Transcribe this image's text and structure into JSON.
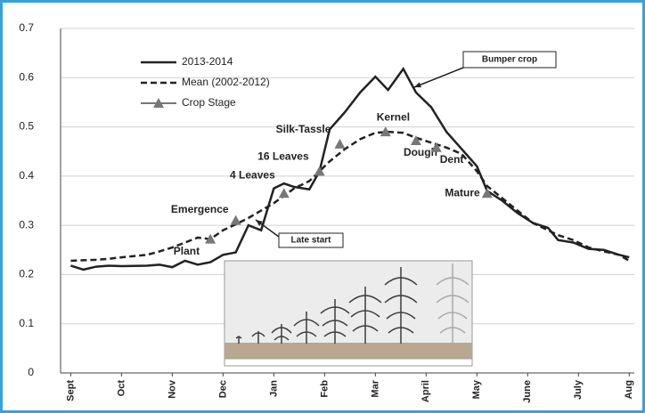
{
  "chart_data": {
    "type": "line",
    "x": [
      0,
      0.25,
      0.5,
      0.75,
      1,
      1.5,
      1.75,
      2,
      2.25,
      2.5,
      2.75,
      3,
      3.25,
      3.5,
      3.75,
      4,
      4.2,
      4.4,
      4.7,
      4.9,
      5.1,
      5.4,
      5.7,
      6,
      6.25,
      6.55,
      6.8,
      7.1,
      7.4,
      7.7,
      8,
      8.2,
      8.5,
      8.8,
      9.1,
      9.4,
      9.6,
      9.9,
      10.2,
      10.5,
      10.8,
      11
    ],
    "series": [
      {
        "name": "2013-2014",
        "color": "#222222",
        "dash": false,
        "values": [
          0.218,
          0.21,
          0.216,
          0.218,
          0.217,
          0.218,
          0.22,
          0.215,
          0.228,
          0.22,
          0.225,
          0.24,
          0.245,
          0.3,
          0.29,
          0.375,
          0.385,
          0.378,
          0.373,
          0.41,
          0.495,
          0.53,
          0.57,
          0.602,
          0.575,
          0.618,
          0.57,
          0.54,
          0.49,
          0.455,
          0.42,
          0.37,
          0.35,
          0.325,
          0.305,
          0.295,
          0.27,
          0.265,
          0.252,
          0.25,
          0.24,
          0.235
        ]
      },
      {
        "name": "Mean (2002-2012)",
        "color": "#222222",
        "dash": true,
        "values": [
          0.228,
          0.229,
          0.23,
          0.232,
          0.235,
          0.24,
          0.247,
          0.255,
          0.265,
          0.275,
          0.272,
          0.29,
          0.302,
          0.315,
          0.33,
          0.345,
          0.36,
          0.375,
          0.39,
          0.41,
          0.43,
          0.455,
          0.475,
          0.488,
          0.49,
          0.488,
          0.478,
          0.468,
          0.458,
          0.445,
          0.41,
          0.38,
          0.355,
          0.33,
          0.305,
          0.29,
          0.28,
          0.27,
          0.255,
          0.247,
          0.24,
          0.228
        ]
      }
    ],
    "crop_stage": {
      "name": "Crop Stage",
      "color": "#777777",
      "labels": [
        "Plant",
        "Emergence",
        "4 Leaves",
        "16 Leaves",
        "Silk-Tassle",
        "Kernel",
        "Dough",
        "Dent",
        "Mature"
      ],
      "x": [
        2.75,
        3.25,
        4.2,
        4.9,
        5.3,
        6.2,
        6.8,
        7.2,
        8.2
      ],
      "values": [
        0.272,
        0.31,
        0.365,
        0.41,
        0.465,
        0.49,
        0.472,
        0.458,
        0.365
      ]
    },
    "annotations": [
      "Bumper crop",
      "Late start"
    ],
    "xlim": [
      -0.2,
      11.1
    ],
    "xticks": [
      {
        "value": 0,
        "label": "Sept"
      },
      {
        "value": 1,
        "label": "Oct"
      },
      {
        "value": 2,
        "label": "Nov"
      },
      {
        "value": 3,
        "label": "Dec"
      },
      {
        "value": 4,
        "label": "Jan"
      },
      {
        "value": 5,
        "label": "Feb"
      },
      {
        "value": 6,
        "label": "Mar"
      },
      {
        "value": 7,
        "label": "April"
      },
      {
        "value": 8,
        "label": "May"
      },
      {
        "value": 9,
        "label": "June"
      },
      {
        "value": 10,
        "label": "July"
      },
      {
        "value": 11,
        "label": "Aug"
      }
    ],
    "ylim": [
      0,
      0.7
    ],
    "yticks": [
      0,
      0.1,
      0.2,
      0.3,
      0.4,
      0.5,
      0.6,
      0.7
    ],
    "grid": true
  }
}
